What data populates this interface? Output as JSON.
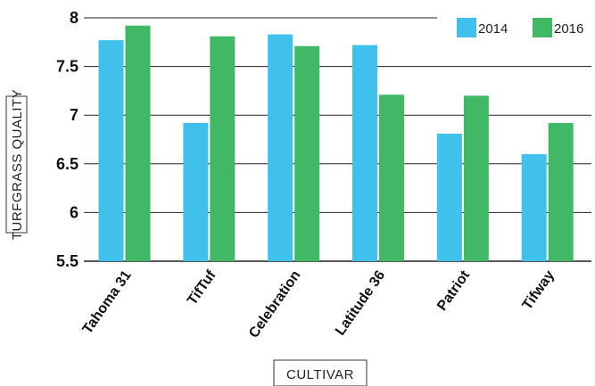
{
  "chart_data": {
    "type": "bar",
    "categories": [
      "Tahoma 31",
      "TifTuf",
      "Celebration",
      "Latitude 36",
      "Patriot",
      "Tifway"
    ],
    "series": [
      {
        "name": "2014",
        "color": "#3fc1ec",
        "values": [
          7.77,
          6.92,
          7.83,
          7.72,
          6.81,
          6.6
        ]
      },
      {
        "name": "2016",
        "color": "#41b866",
        "values": [
          7.92,
          7.81,
          7.71,
          7.21,
          7.2,
          6.92
        ]
      }
    ],
    "yticks": [
      "5.5",
      "6",
      "6.5",
      "7",
      "7.5",
      "8"
    ],
    "ylim": [
      5.5,
      8
    ],
    "xlabel": "CULTIVAR",
    "ylabel": "TURFGRASS QUALITY",
    "grid": true,
    "legend_position": "top-right"
  }
}
